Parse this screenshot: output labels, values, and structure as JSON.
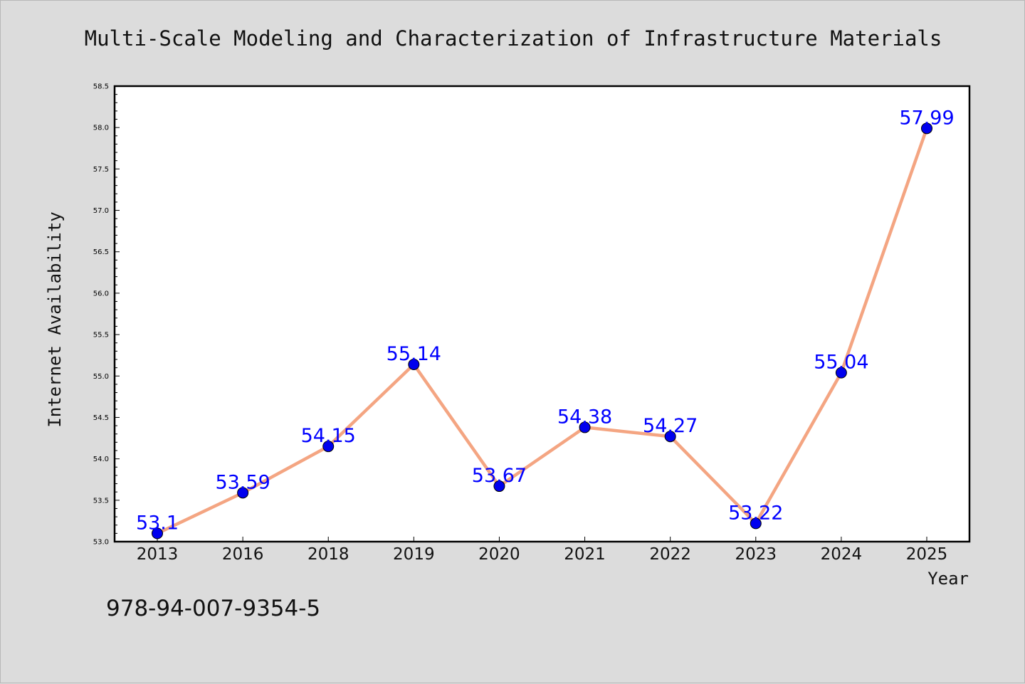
{
  "chart_data": {
    "type": "line",
    "title": "Multi-Scale Modeling and Characterization of Infrastructure Materials",
    "xlabel": "Year",
    "ylabel": "Internet Availability",
    "categories": [
      "2013",
      "2016",
      "2018",
      "2019",
      "2020",
      "2021",
      "2022",
      "2023",
      "2024",
      "2025"
    ],
    "values": [
      53.1,
      53.59,
      54.15,
      55.14,
      53.67,
      54.38,
      54.27,
      53.22,
      55.04,
      57.99
    ],
    "data_labels": [
      "53.1",
      "53.59",
      "54.15",
      "55.14",
      "53.67",
      "54.38",
      "54.27",
      "53.22",
      "55.04",
      "57.99"
    ],
    "ylim": [
      53.0,
      58.5
    ],
    "yticks": [
      "53.0",
      "53.5",
      "54.0",
      "54.5",
      "55.0",
      "55.5",
      "56.0",
      "56.5",
      "57.0",
      "57.5",
      "58.0",
      "58.5"
    ],
    "grid": false,
    "legend": "none",
    "line_color": "#f4a582",
    "marker_color": "#0000ee",
    "label_color": "#0000ff"
  },
  "footer": {
    "code": "978-94-007-9354-5"
  }
}
